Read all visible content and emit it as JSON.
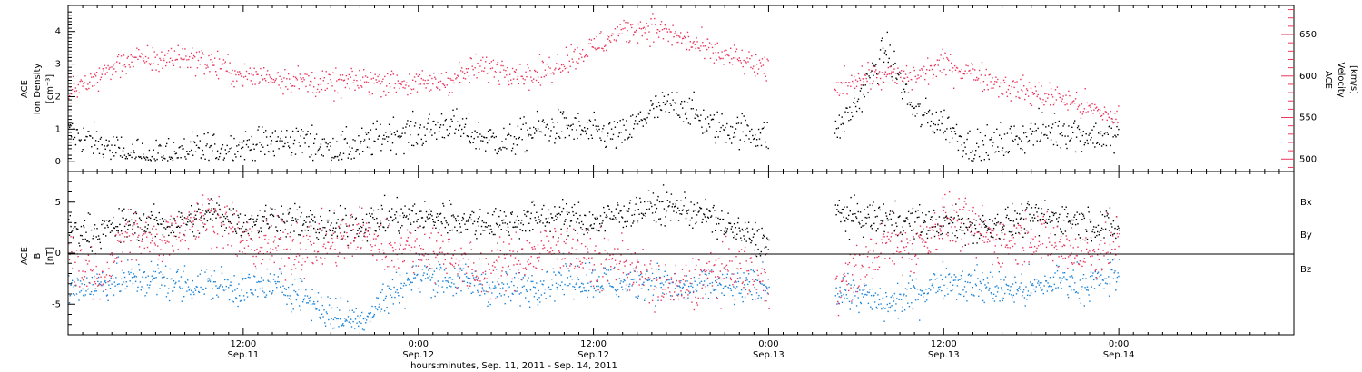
{
  "colors": {
    "axis": "#000000",
    "ion_density": "#000000",
    "velocity": "#e8365c",
    "bx": "#000000",
    "by": "#1a82d6",
    "bz": "#e8365c"
  },
  "x_axis": {
    "title": "hours:minutes, Sep. 11, 2011 - Sep. 14, 2011",
    "start_hours": 0,
    "end_hours": 84,
    "ticks": [
      {
        "hours": 12,
        "line1": "12:00",
        "line2": "Sep.11"
      },
      {
        "hours": 24,
        "line1": "0:00",
        "line2": "Sep.12"
      },
      {
        "hours": 36,
        "line1": "12:00",
        "line2": "Sep.12"
      },
      {
        "hours": 48,
        "line1": "0:00",
        "line2": "Sep.13"
      },
      {
        "hours": 60,
        "line1": "12:00",
        "line2": "Sep.13"
      },
      {
        "hours": 72,
        "line1": "0:00",
        "line2": "Sep.14"
      }
    ]
  },
  "top_panel": {
    "left_label": [
      "ACE",
      "Ion Density",
      "[cm⁻³]"
    ],
    "right_label": [
      "ACE",
      "Velocity",
      "[km/s]"
    ],
    "left_ticks": [
      "0",
      "1",
      "2",
      "3",
      "4"
    ],
    "right_ticks": [
      "500",
      "550",
      "600",
      "650"
    ]
  },
  "bottom_panel": {
    "left_label": [
      "ACE",
      "B",
      "[nT]"
    ],
    "ticks": [
      "-5",
      "0",
      "5"
    ],
    "legend": [
      "Bx",
      "By",
      "Bz"
    ]
  },
  "chart_data": [
    {
      "type": "scatter",
      "title": "",
      "xlabel": "hours:minutes, Sep. 11, 2011 - Sep. 14, 2011",
      "ylabel": "ACE Ion Density [cm-3]",
      "y2label": "ACE Velocity [km/s]",
      "xlim": [
        0,
        84
      ],
      "ylim": [
        -0.3,
        4.8
      ],
      "y2lim": [
        485,
        685
      ],
      "data_gap_hours": [
        48,
        52.5
      ],
      "series": [
        {
          "name": "ACE Ion Density",
          "axis": "left",
          "x": [
            0,
            2,
            4,
            6,
            8,
            10,
            12,
            14,
            16,
            18,
            20,
            22,
            24,
            26,
            28,
            30,
            32,
            34,
            36,
            38,
            40,
            42,
            44,
            46,
            48,
            52.5,
            54,
            56,
            58,
            60,
            62,
            64,
            66,
            68,
            70,
            72
          ],
          "y": [
            0.9,
            0.6,
            0.2,
            0.2,
            0.3,
            0.4,
            0.5,
            0.6,
            0.7,
            0.4,
            0.5,
            0.9,
            0.9,
            1.2,
            0.8,
            0.6,
            1.0,
            1.1,
            0.9,
            0.8,
            1.6,
            1.8,
            1.1,
            1.0,
            0.8,
            0.9,
            1.8,
            3.5,
            1.5,
            1.2,
            0.4,
            0.6,
            0.9,
            1.0,
            0.8,
            0.8
          ]
        },
        {
          "name": "ACE Velocity",
          "axis": "right",
          "x": [
            0,
            2,
            4,
            6,
            8,
            10,
            12,
            14,
            16,
            18,
            20,
            22,
            24,
            26,
            28,
            30,
            32,
            34,
            36,
            38,
            40,
            42,
            44,
            46,
            48,
            52.5,
            54,
            56,
            58,
            60,
            62,
            64,
            66,
            68,
            70,
            72
          ],
          "y": [
            580,
            600,
            620,
            620,
            625,
            615,
            600,
            600,
            595,
            590,
            595,
            595,
            590,
            595,
            610,
            610,
            600,
            620,
            635,
            655,
            660,
            645,
            630,
            620,
            605,
            585,
            600,
            600,
            600,
            615,
            605,
            590,
            580,
            575,
            560,
            550
          ]
        }
      ]
    },
    {
      "type": "scatter",
      "title": "",
      "xlabel": "hours:minutes, Sep. 11, 2011 - Sep. 14, 2011",
      "ylabel": "ACE B [nT]",
      "xlim": [
        0,
        84
      ],
      "ylim": [
        -8,
        8
      ],
      "data_gap_hours": [
        48,
        52.5
      ],
      "series": [
        {
          "name": "Bx",
          "x": [
            0,
            2,
            4,
            6,
            8,
            10,
            12,
            14,
            16,
            18,
            20,
            22,
            24,
            26,
            28,
            30,
            32,
            34,
            36,
            38,
            40,
            42,
            44,
            46,
            48,
            52.5,
            54,
            56,
            58,
            60,
            62,
            64,
            66,
            68,
            70,
            72
          ],
          "y": [
            2.5,
            2.0,
            3.0,
            3.0,
            3.0,
            4.0,
            3.0,
            3.5,
            3.0,
            2.5,
            3.0,
            3.5,
            3.5,
            3.5,
            3.0,
            3.0,
            3.5,
            3.5,
            3.0,
            4.0,
            4.5,
            4.5,
            3.5,
            2.0,
            1.0,
            4.0,
            3.5,
            3.5,
            3.0,
            3.0,
            2.5,
            3.0,
            3.5,
            3.5,
            3.0,
            2.5
          ]
        },
        {
          "name": "By",
          "x": [
            0,
            2,
            4,
            6,
            8,
            10,
            12,
            14,
            16,
            18,
            20,
            22,
            24,
            26,
            28,
            30,
            32,
            34,
            36,
            38,
            40,
            42,
            44,
            46,
            48,
            52.5,
            54,
            56,
            58,
            60,
            62,
            64,
            66,
            68,
            70,
            72
          ],
          "y": [
            -3.5,
            -3.0,
            -2.5,
            -2.5,
            -3.0,
            -3.0,
            -3.5,
            -3.0,
            -4.0,
            -6.0,
            -6.5,
            -4.0,
            -2.0,
            -2.5,
            -3.0,
            -3.5,
            -3.0,
            -2.5,
            -2.5,
            -3.0,
            -2.5,
            -3.5,
            -3.0,
            -3.5,
            -3.0,
            -3.5,
            -4.0,
            -5.0,
            -4.0,
            -2.5,
            -3.0,
            -3.5,
            -3.5,
            -2.5,
            -3.0,
            -2.0
          ]
        },
        {
          "name": "Bz",
          "x": [
            0,
            2,
            4,
            6,
            8,
            10,
            12,
            14,
            16,
            18,
            20,
            22,
            24,
            26,
            28,
            30,
            32,
            34,
            36,
            38,
            40,
            42,
            44,
            46,
            48,
            52.5,
            54,
            56,
            58,
            60,
            62,
            64,
            66,
            68,
            70,
            72
          ],
          "y": [
            0.5,
            -3.0,
            2.0,
            1.0,
            3.0,
            4.0,
            1.0,
            0.5,
            0.5,
            1.0,
            2.0,
            0.5,
            0.5,
            0.0,
            -2.0,
            -1.0,
            0.0,
            1.0,
            -1.0,
            -0.5,
            -3.0,
            -3.5,
            -2.0,
            -1.5,
            -3.0,
            -3.0,
            -2.0,
            1.0,
            0.5,
            3.5,
            2.5,
            1.0,
            2.0,
            0.5,
            0.0,
            1.0
          ]
        }
      ]
    }
  ]
}
